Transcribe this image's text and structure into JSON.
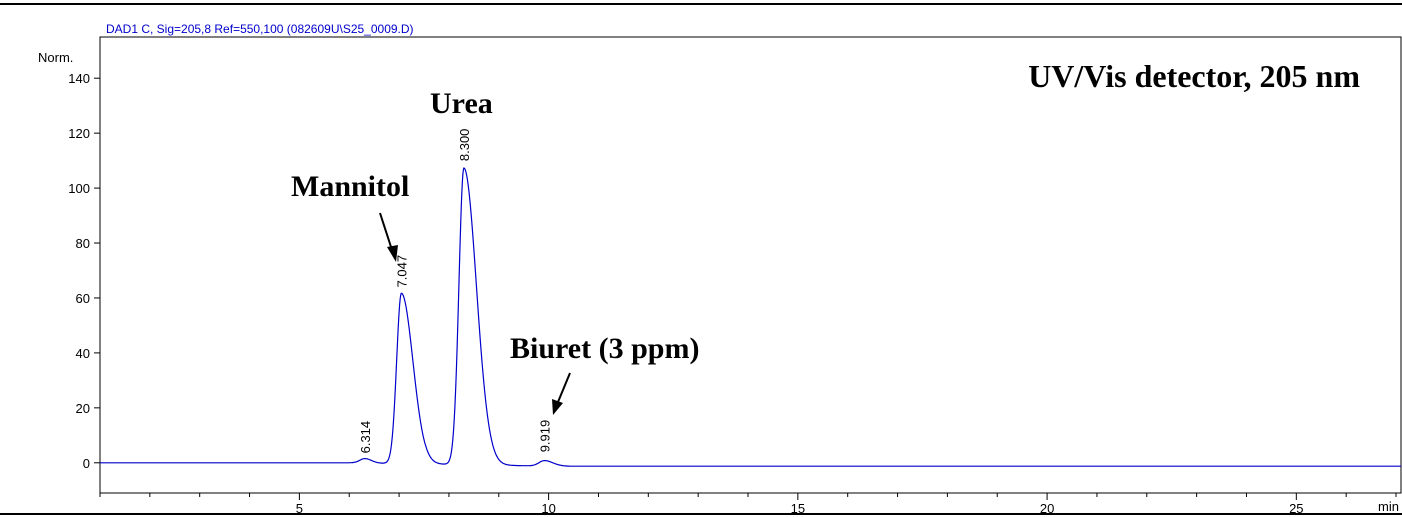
{
  "chart_data": {
    "type": "line",
    "header": "DAD1 C, Sig=205,8 Ref=550,100 (082609U\\S25_0009.D)",
    "title": "UV/Vis detector, 205 nm",
    "ylabel": "Norm.",
    "xlabel": "min",
    "xlim": [
      1,
      27.1
    ],
    "ylim": [
      -11,
      155
    ],
    "xticks_major": [
      5,
      10,
      15,
      20,
      25
    ],
    "xticks_minor_step": 1,
    "yticks": [
      0,
      20,
      40,
      60,
      80,
      100,
      120,
      140
    ],
    "series": [
      {
        "color": "#0000cc",
        "peaks": [
          {
            "rt": 6.314,
            "height": 1.6
          },
          {
            "rt": 7.047,
            "height": 62
          },
          {
            "rt": 8.3,
            "height": 108
          },
          {
            "rt": 9.919,
            "height": 2
          }
        ]
      }
    ],
    "peak_labels": [
      "6.314",
      "7.047",
      "8.300",
      "9.919"
    ],
    "annotations": [
      {
        "text": "Mannitol",
        "points_to": "7.047"
      },
      {
        "text": "Urea",
        "points_to": "8.300"
      },
      {
        "text": "Biuret (3 ppm)",
        "points_to": "9.919"
      }
    ]
  }
}
